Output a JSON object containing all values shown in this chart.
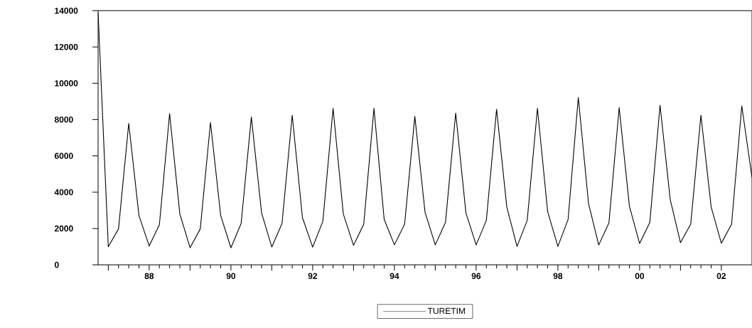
{
  "chart_data": {
    "type": "line",
    "legend": "bottom",
    "marker": "none",
    "line_style": "solid",
    "grid": false,
    "x": [
      1986.75,
      1987,
      1987.25,
      1987.5,
      1987.75,
      1988,
      1988.25,
      1988.5,
      1988.75,
      1989,
      1989.25,
      1989.5,
      1989.75,
      1990,
      1990.25,
      1990.5,
      1990.75,
      1991,
      1991.25,
      1991.5,
      1991.75,
      1992,
      1992.25,
      1992.5,
      1992.75,
      1993,
      1993.25,
      1993.5,
      1993.75,
      1994,
      1994.25,
      1994.5,
      1994.75,
      1995,
      1995.25,
      1995.5,
      1995.75,
      1996,
      1996.25,
      1996.5,
      1996.75,
      1997,
      1997.25,
      1997.5,
      1997.75,
      1998,
      1998.25,
      1998.5,
      1998.75,
      1999,
      1999.25,
      1999.5,
      1999.75,
      2000,
      2000.25,
      2000.5,
      2000.75,
      2001,
      2001.25,
      2001.5,
      2001.75,
      2002,
      2002.25,
      2002.5,
      2002.75
    ],
    "series": [
      {
        "name": "TURETIM",
        "color": "#000000",
        "values": [
          13900,
          1000,
          1980,
          7790,
          2710,
          1040,
          2210,
          8330,
          2800,
          940,
          1980,
          7840,
          2710,
          940,
          2280,
          8140,
          2860,
          980,
          2280,
          8240,
          2600,
          975,
          2400,
          8620,
          2800,
          1070,
          2240,
          8620,
          2500,
          1100,
          2240,
          8180,
          2890,
          1100,
          2340,
          8360,
          2860,
          1100,
          2450,
          8570,
          3190,
          1010,
          2450,
          8620,
          2930,
          1010,
          2500,
          9220,
          3380,
          1090,
          2320,
          8660,
          3230,
          1170,
          2340,
          8790,
          3580,
          1220,
          2240,
          8240,
          3190,
          1190,
          2240,
          8750,
          4800
        ]
      }
    ],
    "xlim": [
      1986.75,
      2002.75
    ],
    "xticks": [
      {
        "value": 1987,
        "label": null
      },
      {
        "value": 1988,
        "label": "88"
      },
      {
        "value": 1989,
        "label": null
      },
      {
        "value": 1990,
        "label": "90"
      },
      {
        "value": 1991,
        "label": null
      },
      {
        "value": 1992,
        "label": "92"
      },
      {
        "value": 1993,
        "label": null
      },
      {
        "value": 1994,
        "label": "94"
      },
      {
        "value": 1995,
        "label": null
      },
      {
        "value": 1996,
        "label": "96"
      },
      {
        "value": 1997,
        "label": null
      },
      {
        "value": 1998,
        "label": "98"
      },
      {
        "value": 1999,
        "label": null
      },
      {
        "value": 2000,
        "label": "00"
      },
      {
        "value": 2001,
        "label": null
      },
      {
        "value": 2002,
        "label": "02"
      }
    ],
    "ylim": [
      0,
      14000
    ],
    "yticks": [
      0,
      2000,
      4000,
      6000,
      8000,
      10000,
      12000,
      14000
    ]
  }
}
